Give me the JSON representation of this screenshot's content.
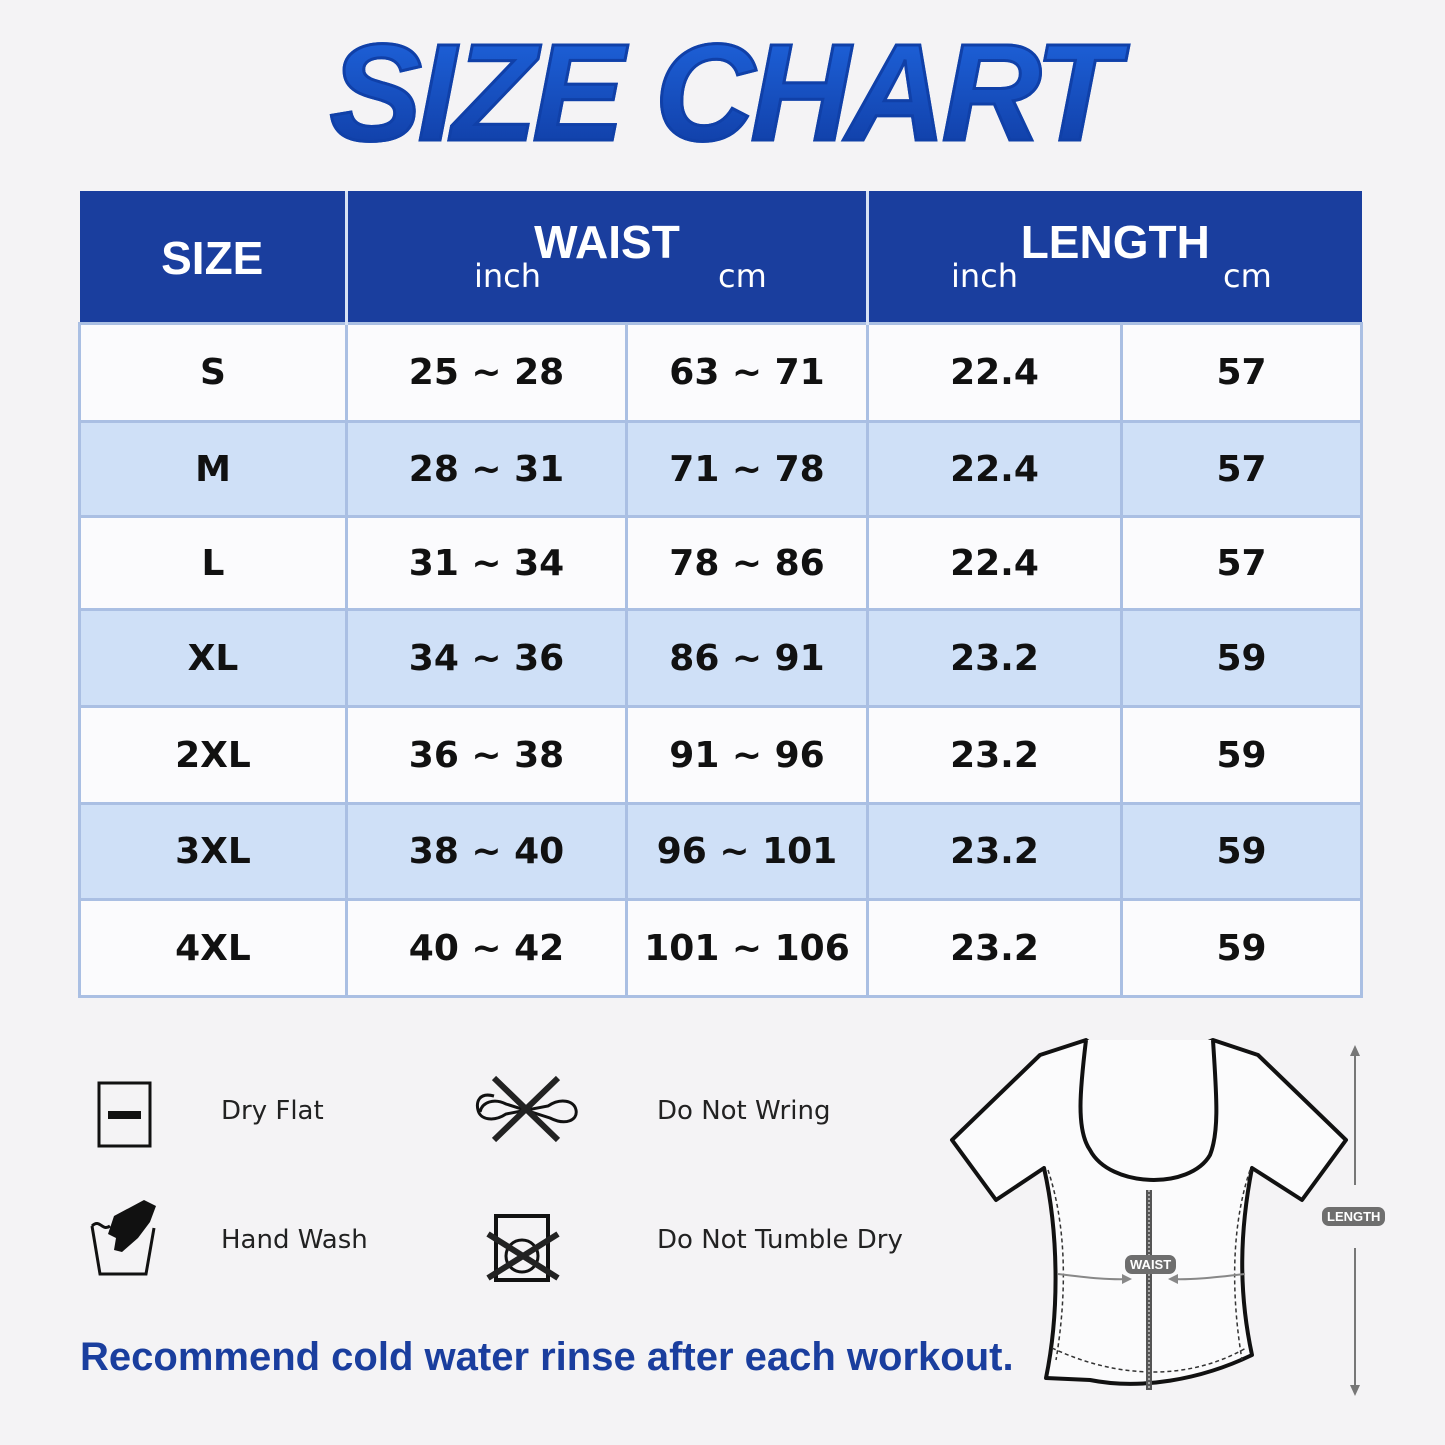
{
  "title": "SIZE CHART",
  "table": {
    "headers": {
      "size": "SIZE",
      "waist": "WAIST",
      "length": "LENGTH",
      "inch": "inch",
      "cm": "cm"
    },
    "rows": [
      {
        "size": "S",
        "waist_in": "25 ~ 28",
        "waist_cm": "63 ~ 71",
        "length_in": "22.4",
        "length_cm": "57"
      },
      {
        "size": "M",
        "waist_in": "28 ~ 31",
        "waist_cm": "71 ~ 78",
        "length_in": "22.4",
        "length_cm": "57"
      },
      {
        "size": "L",
        "waist_in": "31 ~ 34",
        "waist_cm": "78 ~ 86",
        "length_in": "22.4",
        "length_cm": "57"
      },
      {
        "size": "XL",
        "waist_in": "34 ~ 36",
        "waist_cm": "86 ~ 91",
        "length_in": "23.2",
        "length_cm": "59"
      },
      {
        "size": "2XL",
        "waist_in": "36 ~ 38",
        "waist_cm": "91 ~ 96",
        "length_in": "23.2",
        "length_cm": "59"
      },
      {
        "size": "3XL",
        "waist_in": "38 ~ 40",
        "waist_cm": "96 ~ 101",
        "length_in": "23.2",
        "length_cm": "59"
      },
      {
        "size": "4XL",
        "waist_in": "40 ~ 42",
        "waist_cm": "101 ~ 106",
        "length_in": "23.2",
        "length_cm": "59"
      }
    ]
  },
  "care": [
    {
      "icon": "dry-flat-icon",
      "label": "Dry Flat"
    },
    {
      "icon": "do-not-wring-icon",
      "label": "Do Not Wring"
    },
    {
      "icon": "hand-wash-icon",
      "label": "Hand Wash"
    },
    {
      "icon": "do-not-tumble-dry-icon",
      "label": "Do Not Tumble Dry"
    }
  ],
  "note": "Recommend cold water rinse after each workout.",
  "diagram": {
    "waist_label": "WAIST",
    "length_label": "LENGTH"
  },
  "colors": {
    "header": "#1a3e9e",
    "alt_row": "#cfe0f7",
    "accent": "#1648b8"
  }
}
